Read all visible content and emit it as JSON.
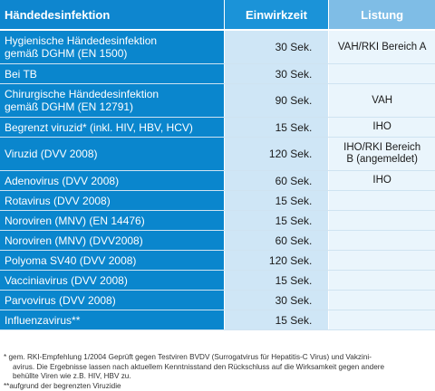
{
  "header": {
    "col1": "Händedesinfektion",
    "col2": "Einwirkzeit",
    "col3": "Listung"
  },
  "rows": [
    {
      "name_l1": "Hygienische Händedesinfektion",
      "name_l2": "gemäß DGHM (EN 1500)",
      "time": "30 Sek.",
      "listing_l1": "VAH/RKI Bereich A",
      "listing_l2": ""
    },
    {
      "name_l1": "Bei TB",
      "name_l2": "",
      "time": "30 Sek.",
      "listing_l1": "",
      "listing_l2": ""
    },
    {
      "name_l1": "Chirurgische Händedesinfektion",
      "name_l2": "gemäß DGHM (EN 12791)",
      "time": "90 Sek.",
      "listing_l1": "VAH",
      "listing_l2": ""
    },
    {
      "name_l1": "Begrenzt viruzid*  (inkl. HIV, HBV, HCV)",
      "name_l2": "",
      "time": "15 Sek.",
      "listing_l1": "IHO",
      "listing_l2": ""
    },
    {
      "name_l1": "Viruzid (DVV 2008)",
      "name_l2": "",
      "time": "120 Sek.",
      "listing_l1": "IHO/RKI Bereich",
      "listing_l2": "B (angemeldet)"
    },
    {
      "name_l1": "Adenovirus (DVV 2008)",
      "name_l2": "",
      "time": "60 Sek.",
      "listing_l1": "IHO",
      "listing_l2": ""
    },
    {
      "name_l1": "Rotavirus (DVV 2008)",
      "name_l2": "",
      "time": "15 Sek.",
      "listing_l1": "",
      "listing_l2": ""
    },
    {
      "name_l1": "Noroviren (MNV) (EN 14476)",
      "name_l2": "",
      "time": "15 Sek.",
      "listing_l1": "",
      "listing_l2": ""
    },
    {
      "name_l1": "Noroviren (MNV) (DVV2008)",
      "name_l2": "",
      "time": "60 Sek.",
      "listing_l1": "",
      "listing_l2": ""
    },
    {
      "name_l1": "Polyoma SV40 (DVV 2008)",
      "name_l2": "",
      "time": "120 Sek.",
      "listing_l1": "",
      "listing_l2": ""
    },
    {
      "name_l1": "Vacciniavirus (DVV 2008)",
      "name_l2": "",
      "time": "15 Sek.",
      "listing_l1": "",
      "listing_l2": ""
    },
    {
      "name_l1": "Parvovirus (DVV 2008)",
      "name_l2": "",
      "time": "30 Sek.",
      "listing_l1": "",
      "listing_l2": ""
    },
    {
      "name_l1": "Influenzavirus**",
      "name_l2": "",
      "time": "15 Sek.",
      "listing_l1": "",
      "listing_l2": ""
    }
  ],
  "footnotes": {
    "fn1_l1": "*  gem. RKI-Empfehlung 1/2004 Geprüft gegen Testviren BVDV (Surrogatvirus für Hepatitis-C Virus) und Vakzini-",
    "fn1_l2": "avirus. Die Ergebnisse lassen nach aktuellem Kenntnisstand den Rückschluss auf die Wirksamkeit gegen andere",
    "fn1_l3": "behüllte Viren wie z.B. HIV, HBV zu.",
    "fn2": "**aufgrund der begrenzten Viruzidie"
  },
  "colors": {
    "col1_bg": "#0a86cd",
    "col2_bg": "#cfe6f6",
    "col3_bg": "#eaf5fc",
    "header3_bg": "#7fbde6"
  }
}
